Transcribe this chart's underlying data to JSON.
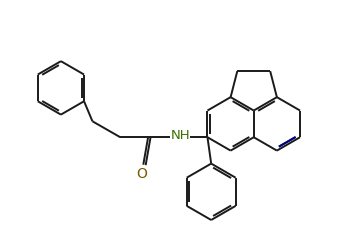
{
  "bg_color": "#ffffff",
  "bond_color": "#1a1a1a",
  "nh_color": "#3a7000",
  "o_color": "#7a5800",
  "blue_bond_color": "#00008b",
  "lw": 1.4,
  "dlo": 0.055,
  "figsize": [
    3.63,
    2.5
  ],
  "dpi": 100,
  "xlim": [
    0,
    9.5
  ],
  "ylim": [
    0.5,
    7.2
  ]
}
